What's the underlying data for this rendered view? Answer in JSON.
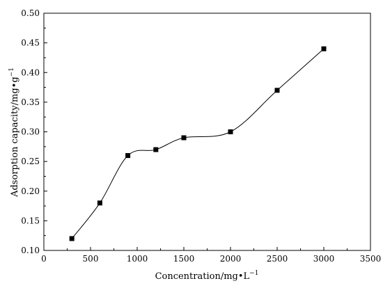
{
  "chart_data": {
    "type": "scatter",
    "title": "",
    "xlabel": "Concentration/mg•L",
    "xlabel_sup": "−1",
    "ylabel": "Adsorption capacity/mg•g",
    "ylabel_sup": "−1",
    "xlim": [
      0,
      3500
    ],
    "ylim": [
      0.1,
      0.5
    ],
    "xticks": [
      "0",
      "500",
      "1000",
      "1500",
      "2000",
      "2500",
      "3000",
      "3500"
    ],
    "yticks": [
      "0.10",
      "0.15",
      "0.20",
      "0.25",
      "0.30",
      "0.35",
      "0.40",
      "0.45",
      "0.50"
    ],
    "grid": false,
    "legend": "none",
    "marker": "square",
    "fit_line": "smooth",
    "series": [
      {
        "x": [
          300,
          600,
          900,
          1200,
          1500,
          2000,
          2500,
          3000
        ],
        "y": [
          0.12,
          0.18,
          0.26,
          0.27,
          0.29,
          0.3,
          0.37,
          0.44
        ]
      }
    ]
  }
}
